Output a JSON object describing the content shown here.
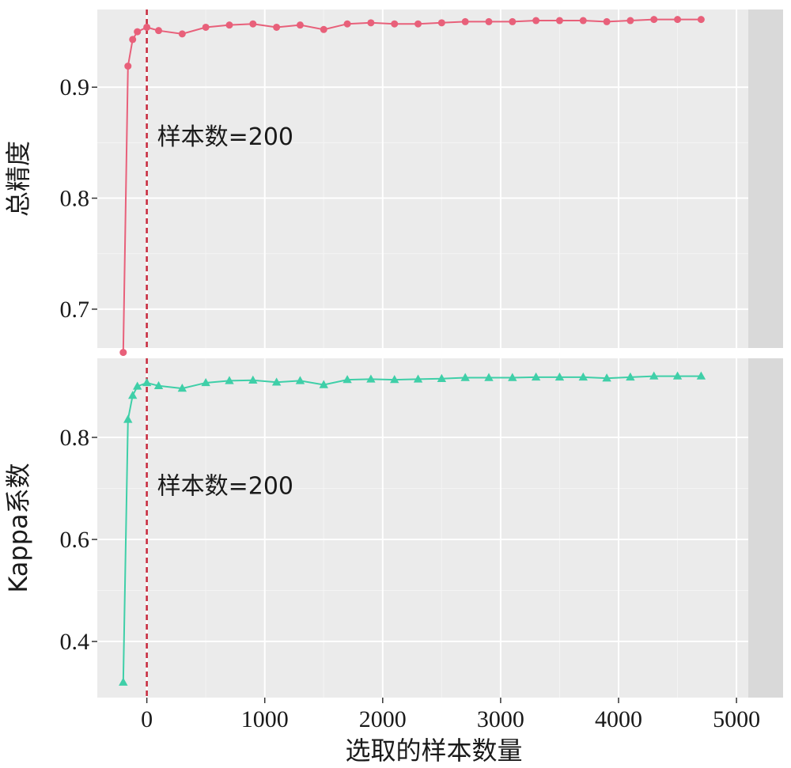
{
  "chart_data": {
    "type": "line",
    "x_label": "选取的样本数量",
    "x_ticks": [
      0,
      1000,
      2000,
      3000,
      4000,
      5000
    ],
    "x_tick_labels": [
      "0",
      "1000",
      "2000",
      "3000",
      "4000",
      "5000"
    ],
    "xlim": [
      -420,
      5100
    ],
    "vline": {
      "x": 0,
      "color": "#c8283c",
      "style": "dashed"
    },
    "grid": true,
    "panel_background": "#ebebeb",
    "strip_background": "#d9d9d9",
    "panels": [
      {
        "ylabel": "总精度",
        "ylim": [
          0.665,
          0.97
        ],
        "y_ticks": [
          0.7,
          0.8,
          0.9
        ],
        "y_tick_labels": [
          "0.7",
          "0.8",
          "0.9"
        ],
        "annotation": "样本数=200",
        "series": {
          "color": "#e8607a",
          "marker": "circle",
          "x": [
            -200,
            -160,
            -120,
            -80,
            0,
            100,
            300,
            500,
            700,
            900,
            1100,
            1300,
            1500,
            1700,
            1900,
            2100,
            2300,
            2500,
            2700,
            2900,
            3100,
            3300,
            3500,
            3700,
            3900,
            4100,
            4300,
            4500,
            4700
          ],
          "y": [
            0.661,
            0.919,
            0.943,
            0.95,
            0.954,
            0.951,
            0.948,
            0.954,
            0.956,
            0.957,
            0.954,
            0.956,
            0.952,
            0.957,
            0.958,
            0.957,
            0.957,
            0.958,
            0.959,
            0.959,
            0.959,
            0.96,
            0.96,
            0.96,
            0.959,
            0.96,
            0.961,
            0.961,
            0.961
          ]
        }
      },
      {
        "ylabel": "Kappa系数",
        "ylim": [
          0.29,
          0.955
        ],
        "y_ticks": [
          0.4,
          0.6,
          0.8
        ],
        "y_tick_labels": [
          "0.4",
          "0.6",
          "0.8"
        ],
        "annotation": "样本数=200",
        "series": {
          "color": "#3fcfa8",
          "marker": "triangle",
          "x": [
            -200,
            -160,
            -120,
            -80,
            0,
            100,
            300,
            500,
            700,
            900,
            1100,
            1300,
            1500,
            1700,
            1900,
            2100,
            2300,
            2500,
            2700,
            2900,
            3100,
            3300,
            3500,
            3700,
            3900,
            4100,
            4300,
            4500,
            4700
          ],
          "y": [
            0.32,
            0.835,
            0.882,
            0.9,
            0.907,
            0.901,
            0.896,
            0.907,
            0.911,
            0.912,
            0.908,
            0.911,
            0.903,
            0.913,
            0.914,
            0.913,
            0.914,
            0.915,
            0.917,
            0.917,
            0.917,
            0.918,
            0.918,
            0.918,
            0.916,
            0.918,
            0.92,
            0.92,
            0.92
          ]
        }
      }
    ]
  }
}
